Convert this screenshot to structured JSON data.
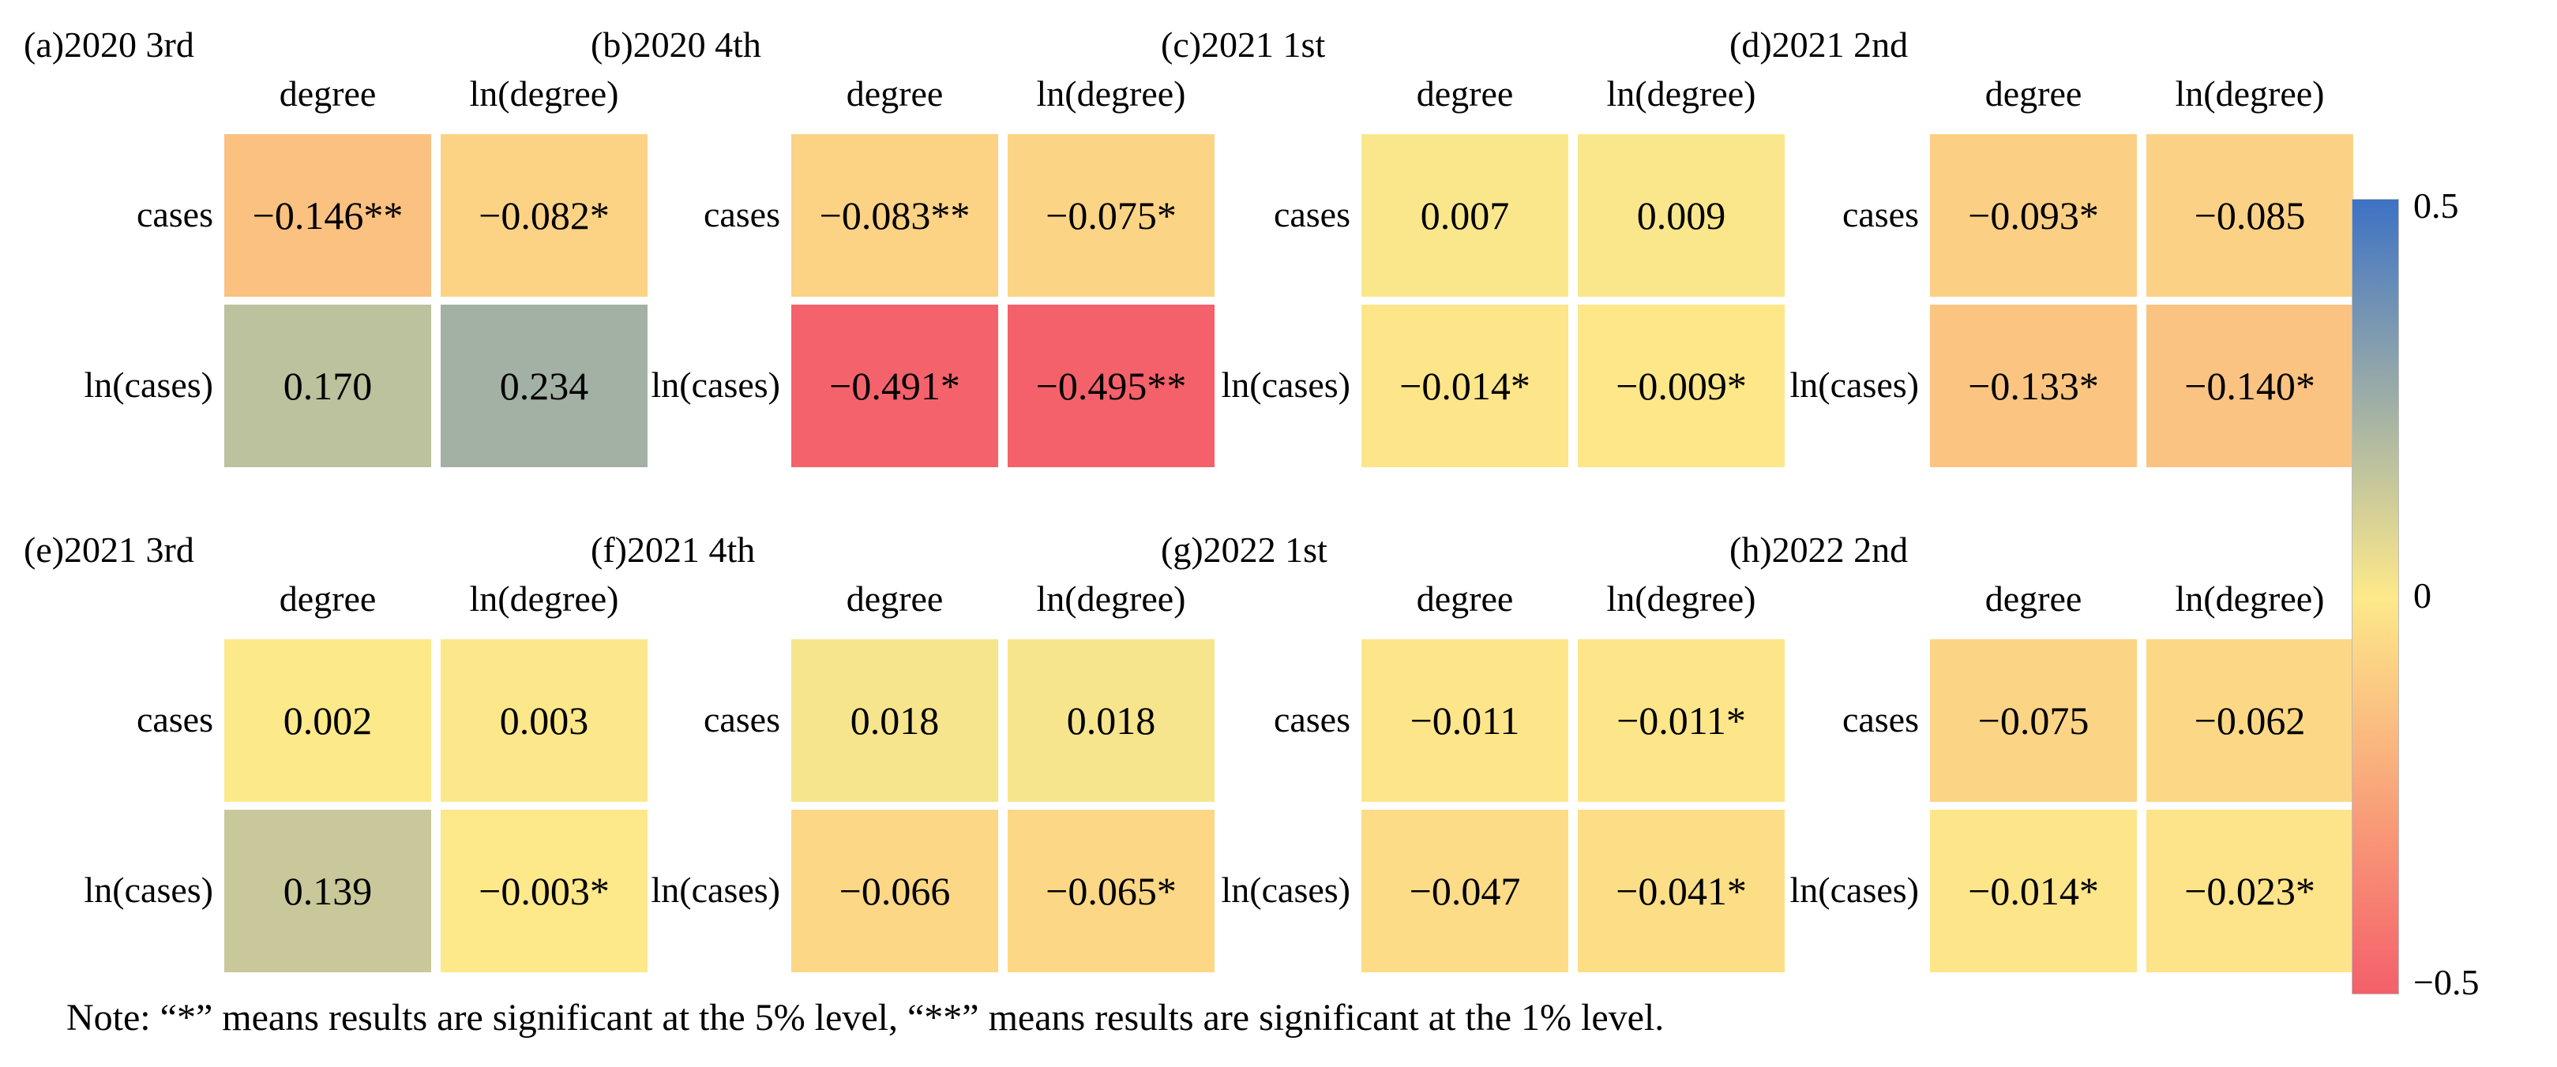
{
  "chart_data": {
    "type": "heatmap",
    "row_labels": [
      "cases",
      "ln(cases)"
    ],
    "col_labels": [
      "degree",
      "ln(degree)"
    ],
    "colorbar": {
      "min": -0.5,
      "max": 0.5,
      "tick_labels": [
        "0.5",
        "0",
        "−0.5"
      ]
    },
    "panels": [
      {
        "title": "(a)2020 3rd",
        "values": [
          [
            -0.146,
            -0.082
          ],
          [
            0.17,
            0.234
          ]
        ],
        "labels": [
          [
            "−0.146**",
            "−0.082*"
          ],
          [
            "0.170",
            "0.234"
          ]
        ]
      },
      {
        "title": "(b)2020 4th",
        "values": [
          [
            -0.083,
            -0.075
          ],
          [
            -0.491,
            -0.495
          ]
        ],
        "labels": [
          [
            "−0.083**",
            "−0.075*"
          ],
          [
            "−0.491*",
            "−0.495**"
          ]
        ]
      },
      {
        "title": "(c)2021 1st",
        "values": [
          [
            0.007,
            0.009
          ],
          [
            -0.014,
            -0.009
          ]
        ],
        "labels": [
          [
            "0.007",
            "0.009"
          ],
          [
            "−0.014*",
            "−0.009*"
          ]
        ]
      },
      {
        "title": "(d)2021 2nd",
        "values": [
          [
            -0.093,
            -0.085
          ],
          [
            -0.133,
            -0.14
          ]
        ],
        "labels": [
          [
            "−0.093*",
            "−0.085"
          ],
          [
            "−0.133*",
            "−0.140*"
          ]
        ]
      },
      {
        "title": "(e)2021 3rd",
        "values": [
          [
            0.002,
            0.003
          ],
          [
            0.139,
            -0.003
          ]
        ],
        "labels": [
          [
            "0.002",
            "0.003"
          ],
          [
            "0.139",
            "−0.003*"
          ]
        ]
      },
      {
        "title": "(f)2021 4th",
        "values": [
          [
            0.018,
            0.018
          ],
          [
            -0.066,
            -0.065
          ]
        ],
        "labels": [
          [
            "0.018",
            "0.018"
          ],
          [
            "−0.066",
            "−0.065*"
          ]
        ]
      },
      {
        "title": "(g)2022 1st",
        "values": [
          [
            -0.011,
            -0.011
          ],
          [
            -0.047,
            -0.041
          ]
        ],
        "labels": [
          [
            "−0.011",
            "−0.011*"
          ],
          [
            "−0.047",
            "−0.041*"
          ]
        ]
      },
      {
        "title": "(h)2022 2nd",
        "values": [
          [
            -0.075,
            -0.062
          ],
          [
            -0.014,
            -0.023
          ]
        ],
        "labels": [
          [
            "−0.075",
            "−0.062"
          ],
          [
            "−0.014*",
            "−0.023*"
          ]
        ]
      }
    ]
  },
  "note": "Note: “*” means results are significant at the 5% level, “**” means results are significant at the 1% level.",
  "colors": {
    "low": "#f4606a",
    "mid": "#fde98a",
    "high": "#3d72c4"
  }
}
